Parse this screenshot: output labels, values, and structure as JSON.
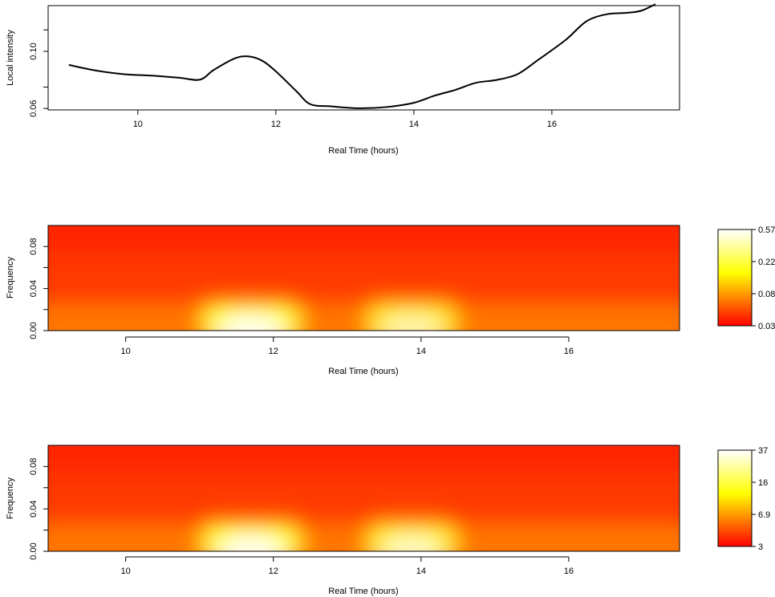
{
  "chart_data": [
    {
      "type": "line",
      "xlabel": "Real Time (hours)",
      "ylabel": "Local intensity",
      "xlim": [
        8.7,
        17.85
      ],
      "ylim": [
        0.059,
        0.132
      ],
      "xticks": [
        10,
        12,
        14,
        16
      ],
      "xtick_labels": [
        "10",
        "12",
        "14",
        "16"
      ],
      "yticks": [
        0.06,
        0.075,
        0.1,
        0.115
      ],
      "ytick_labels": [
        "0.06",
        "",
        "0.10",
        ""
      ],
      "grid": false,
      "series": [
        {
          "x": [
            9.0,
            9.4,
            9.8,
            10.2,
            10.6,
            10.9,
            11.1,
            11.4,
            11.6,
            11.8,
            12.0,
            12.3,
            12.5,
            12.8,
            13.2,
            13.6,
            14.0,
            14.3,
            14.6,
            14.9,
            15.2,
            15.5,
            15.8,
            16.2,
            16.5,
            16.8,
            17.1,
            17.3,
            17.5
          ],
          "y": [
            0.0905,
            0.0865,
            0.084,
            0.083,
            0.0815,
            0.0802,
            0.087,
            0.095,
            0.0965,
            0.0935,
            0.086,
            0.072,
            0.063,
            0.0615,
            0.0602,
            0.061,
            0.064,
            0.069,
            0.073,
            0.078,
            0.08,
            0.084,
            0.094,
            0.108,
            0.121,
            0.126,
            0.127,
            0.1285,
            0.133
          ]
        }
      ]
    },
    {
      "type": "heatmap",
      "xlabel": "Real Time (hours)",
      "ylabel": "Frequency",
      "xlim": [
        8.95,
        17.5
      ],
      "ylim": [
        0.0,
        0.1
      ],
      "xticks": [
        10,
        12,
        14,
        16
      ],
      "xtick_labels": [
        "10",
        "12",
        "14",
        "16"
      ],
      "yticks": [
        0.0,
        0.02,
        0.04,
        0.06,
        0.08
      ],
      "ytick_labels": [
        "0.00",
        "",
        "0.04",
        "",
        "0.08"
      ],
      "colorbar": {
        "colors": [
          "#ff0000",
          "#ffff00",
          "#ffffff"
        ],
        "ticks": [
          "0.034",
          "0.086",
          "0.22",
          "0.57"
        ]
      },
      "hotspots": [
        {
          "x_range": [
            10.95,
            12.45
          ],
          "freq_max": 0.032,
          "peak": 1.0
        },
        {
          "x_range": [
            13.2,
            14.55
          ],
          "freq_max": 0.032,
          "peak": 0.72
        }
      ]
    },
    {
      "type": "heatmap",
      "xlabel": "Real Time (hours)",
      "ylabel": "Frequency",
      "xlim": [
        8.95,
        17.5
      ],
      "ylim": [
        0.0,
        0.1
      ],
      "xticks": [
        10,
        12,
        14,
        16
      ],
      "xtick_labels": [
        "10",
        "12",
        "14",
        "16"
      ],
      "yticks": [
        0.0,
        0.02,
        0.04,
        0.06,
        0.08
      ],
      "ytick_labels": [
        "0.00",
        "",
        "0.04",
        "",
        "0.08"
      ],
      "colorbar": {
        "colors": [
          "#ff0000",
          "#ffff00",
          "#ffffff"
        ],
        "ticks": [
          "3",
          "6.9",
          "16",
          "37"
        ]
      },
      "hotspots": [
        {
          "x_range": [
            10.95,
            12.45
          ],
          "freq_max": 0.032,
          "peak": 1.0
        },
        {
          "x_range": [
            13.2,
            14.55
          ],
          "freq_max": 0.032,
          "peak": 0.8
        }
      ]
    }
  ]
}
